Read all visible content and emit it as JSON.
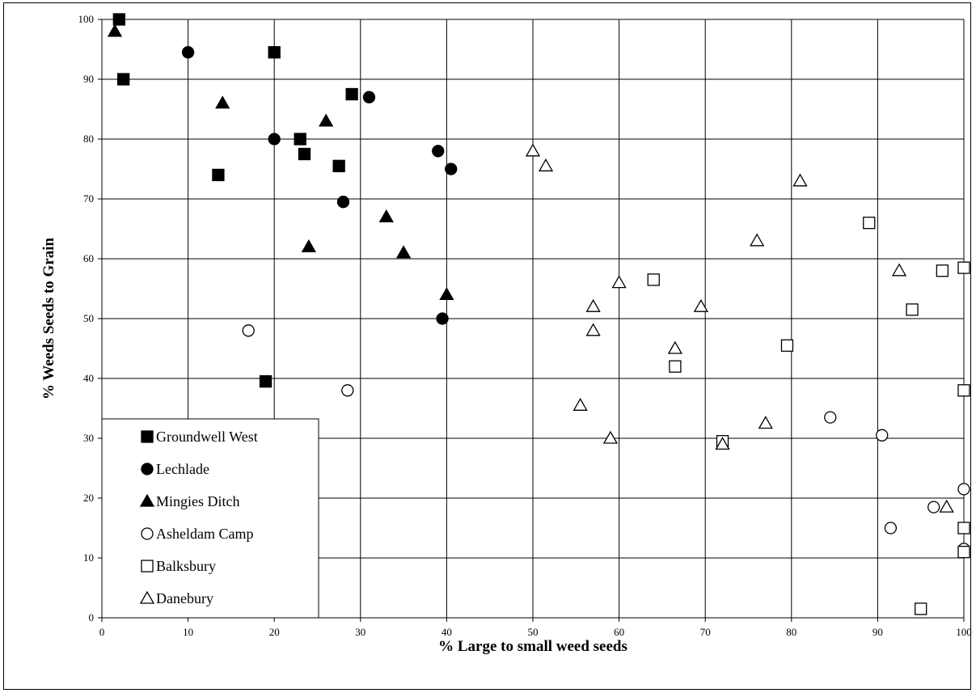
{
  "chart_data": {
    "type": "scatter",
    "title": "",
    "xlabel": "% Large to small weed seeds",
    "ylabel": "% Weeds Seeds to Grain",
    "xlim": [
      0,
      100
    ],
    "ylim": [
      0,
      100
    ],
    "xticks": [
      "0",
      "10",
      "20",
      "30",
      "40",
      "50",
      "60",
      "70",
      "80",
      "90",
      "100"
    ],
    "yticks": [
      "0",
      "10",
      "20",
      "30",
      "40",
      "50",
      "60",
      "70",
      "80",
      "90",
      "100"
    ],
    "grid": "on",
    "legend_position": "bottom-left",
    "series": [
      {
        "name": "Groundwell West",
        "marker": "square-filled",
        "points": [
          [
            2,
            100
          ],
          [
            2.5,
            90
          ],
          [
            20,
            94.5
          ],
          [
            13.5,
            74
          ],
          [
            23,
            80
          ],
          [
            23.5,
            77.5
          ],
          [
            27.5,
            75.5
          ],
          [
            29,
            87.5
          ],
          [
            19,
            39.5
          ]
        ]
      },
      {
        "name": "Lechlade",
        "marker": "circle-filled",
        "points": [
          [
            10,
            94.5
          ],
          [
            20,
            80
          ],
          [
            31,
            87
          ],
          [
            28,
            69.5
          ],
          [
            39,
            78
          ],
          [
            40.5,
            75
          ],
          [
            39.5,
            50
          ]
        ]
      },
      {
        "name": "Mingies Ditch",
        "marker": "triangle-filled",
        "points": [
          [
            1.5,
            98
          ],
          [
            14,
            86
          ],
          [
            26,
            83
          ],
          [
            33,
            67
          ],
          [
            24,
            62
          ],
          [
            35,
            61
          ],
          [
            40,
            54
          ]
        ]
      },
      {
        "name": "Asheldam Camp",
        "marker": "circle-open",
        "points": [
          [
            17,
            48
          ],
          [
            28.5,
            38
          ],
          [
            84.5,
            33.5
          ],
          [
            90.5,
            30.5
          ],
          [
            100,
            21.5
          ],
          [
            96.5,
            18.5
          ],
          [
            91.5,
            15
          ],
          [
            100,
            11.5
          ]
        ]
      },
      {
        "name": "Balksbury",
        "marker": "square-open",
        "points": [
          [
            64,
            56.5
          ],
          [
            66.5,
            42
          ],
          [
            72,
            29.5
          ],
          [
            79.5,
            45.5
          ],
          [
            89,
            66
          ],
          [
            94,
            51.5
          ],
          [
            97.5,
            58
          ],
          [
            100,
            58.5
          ],
          [
            100,
            38
          ],
          [
            100,
            15
          ],
          [
            100,
            11
          ],
          [
            95,
            1.5
          ]
        ]
      },
      {
        "name": "Danebury",
        "marker": "triangle-open",
        "points": [
          [
            50,
            78
          ],
          [
            51.5,
            75.5
          ],
          [
            57,
            52
          ],
          [
            57,
            48
          ],
          [
            60,
            56
          ],
          [
            55.5,
            35.5
          ],
          [
            59,
            30
          ],
          [
            66.5,
            45
          ],
          [
            69.5,
            52
          ],
          [
            72,
            29
          ],
          [
            77,
            32.5
          ],
          [
            76,
            63
          ],
          [
            81,
            73
          ],
          [
            92.5,
            58
          ],
          [
            98,
            18.5
          ]
        ]
      }
    ]
  }
}
